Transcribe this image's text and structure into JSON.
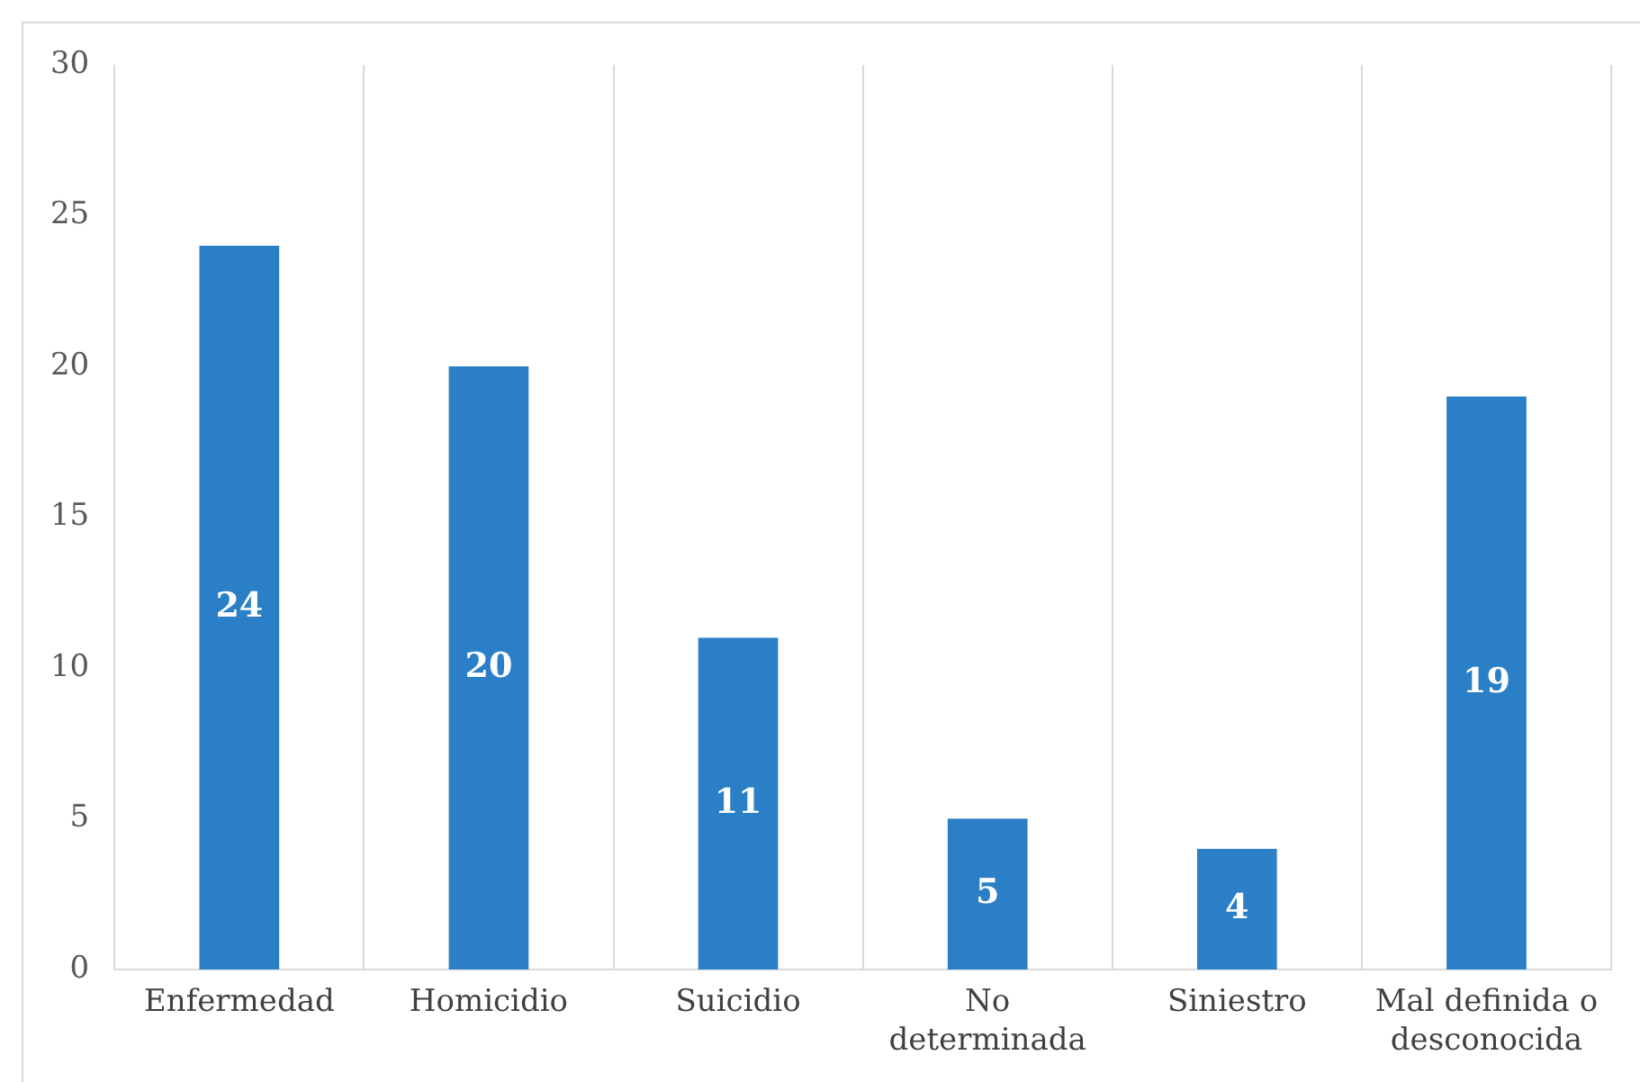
{
  "chart_data": {
    "type": "bar",
    "categories": [
      "Enfermedad",
      "Homicidio",
      "Suicidio",
      "No determinada",
      "Siniestro",
      "Mal definida o desconocida"
    ],
    "values": [
      24,
      20,
      11,
      5,
      4,
      19
    ],
    "color": "#2a7fc6",
    "ylim": [
      0,
      30
    ],
    "yticks": [
      0,
      5,
      10,
      15,
      20,
      25,
      30
    ],
    "grid": "x",
    "data_labels": true,
    "legend": false
  }
}
